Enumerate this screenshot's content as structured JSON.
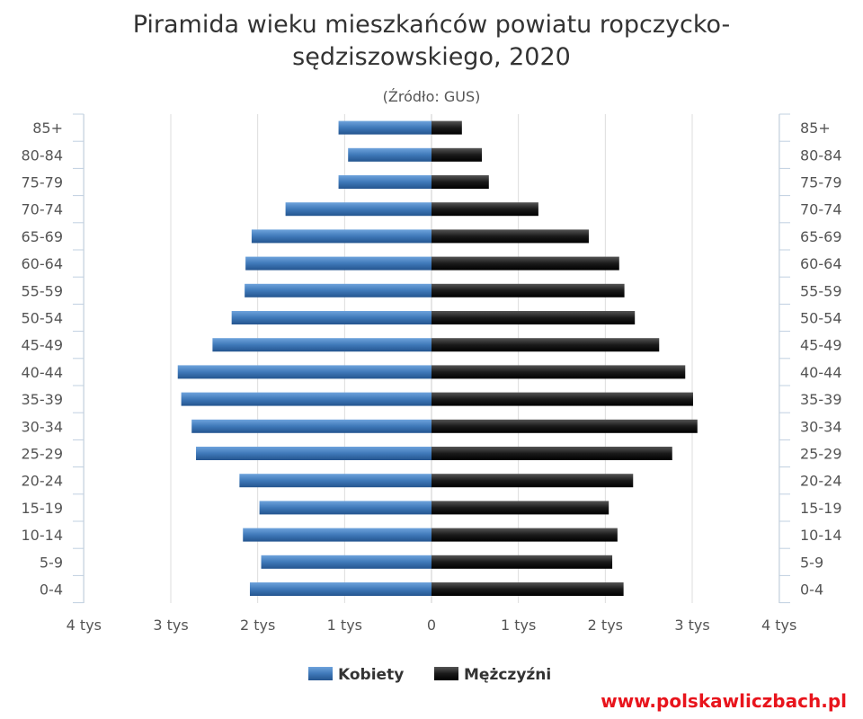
{
  "chart_data": {
    "type": "bar",
    "orientation": "horizontal",
    "title_line1": "Piramida wieku mieszkańców powiatu ropczycko-",
    "title_line2": "sędziszowskiego, 2020",
    "subtitle": "(Źródło: GUS)",
    "categories": [
      "85+",
      "80-84",
      "75-79",
      "70-74",
      "65-69",
      "60-64",
      "55-59",
      "50-54",
      "45-49",
      "40-44",
      "35-39",
      "30-34",
      "25-29",
      "20-24",
      "15-19",
      "10-14",
      "5-9",
      "0-4"
    ],
    "series": [
      {
        "name": "Kobiety",
        "color": "#3f79b9",
        "values": [
          1070,
          960,
          1070,
          1680,
          2070,
          2140,
          2150,
          2300,
          2520,
          2920,
          2880,
          2760,
          2710,
          2210,
          1980,
          2170,
          1960,
          2090
        ]
      },
      {
        "name": "Mężczyźni",
        "color": "#1a1a1a",
        "values": [
          350,
          580,
          660,
          1230,
          1810,
          2160,
          2220,
          2340,
          2620,
          2920,
          3010,
          3060,
          2770,
          2320,
          2040,
          2140,
          2080,
          2210
        ]
      }
    ],
    "xlim": [
      -4000,
      4000
    ],
    "ticks": [
      -4000,
      -3000,
      -2000,
      -1000,
      0,
      1000,
      2000,
      3000,
      4000
    ],
    "tick_labels": [
      "4 tys",
      "3 tys",
      "2 tys",
      "1 tys",
      "0",
      "1 tys",
      "2 tys",
      "3 tys",
      "4 tys"
    ],
    "grid": true,
    "legend_position": "bottom-center"
  },
  "watermark": "www.polskawliczbach.pl"
}
